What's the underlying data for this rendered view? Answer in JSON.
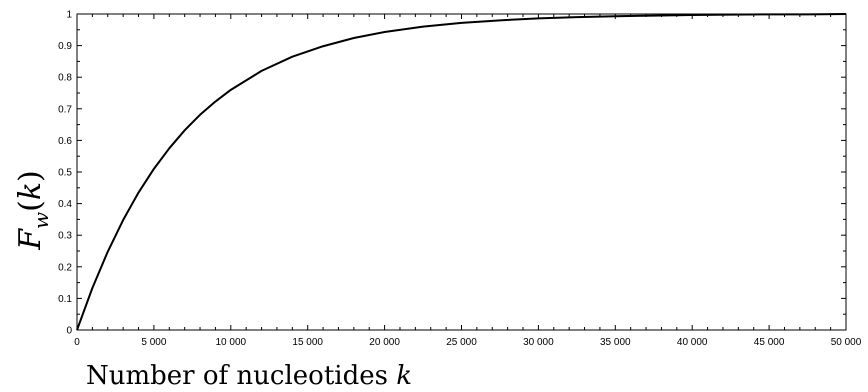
{
  "chart_data": {
    "type": "line",
    "title": "",
    "xlabel": "Number of nucleotides k",
    "xlabel_parts": {
      "text": "Number of nucleotides ",
      "var": "k"
    },
    "ylabel": "F_w(k)",
    "ylabel_parts": {
      "F": "F",
      "sub": "w",
      "open": "(",
      "var": "k",
      "close": ")"
    },
    "xlim": [
      0,
      50000
    ],
    "ylim": [
      0,
      1
    ],
    "grid": false,
    "legend": "none",
    "x_ticks": [
      0,
      5000,
      10000,
      15000,
      20000,
      25000,
      30000,
      35000,
      40000,
      45000,
      50000
    ],
    "x_tick_labels": [
      "0",
      "5 000",
      "10 000",
      "15 000",
      "20 000",
      "25 000",
      "30 000",
      "35 000",
      "40 000",
      "45 000",
      "50 000"
    ],
    "y_ticks": [
      0,
      0.1,
      0.2,
      0.3,
      0.4,
      0.5,
      0.6,
      0.7,
      0.8,
      0.9,
      1
    ],
    "y_tick_labels": [
      "0",
      "0.1",
      "0.2",
      "0.3",
      "0.4",
      "0.5",
      "0.6",
      "0.7",
      "0.8",
      "0.9",
      "1"
    ],
    "series": [
      {
        "color": "#000000",
        "x": [
          0,
          1000,
          2000,
          3000,
          4000,
          5000,
          6000,
          7000,
          8000,
          9000,
          10000,
          12000,
          14000,
          16000,
          18000,
          20000,
          22500,
          25000,
          27500,
          30000,
          32500,
          35000,
          37500,
          40000,
          42500,
          45000,
          47500,
          50000
        ],
        "y": [
          0,
          0.133,
          0.248,
          0.348,
          0.435,
          0.51,
          0.575,
          0.632,
          0.681,
          0.723,
          0.76,
          0.82,
          0.865,
          0.898,
          0.924,
          0.943,
          0.96,
          0.972,
          0.98,
          0.986,
          0.99,
          0.993,
          0.995,
          0.997,
          0.998,
          0.999,
          0.999,
          1.0
        ]
      }
    ]
  }
}
